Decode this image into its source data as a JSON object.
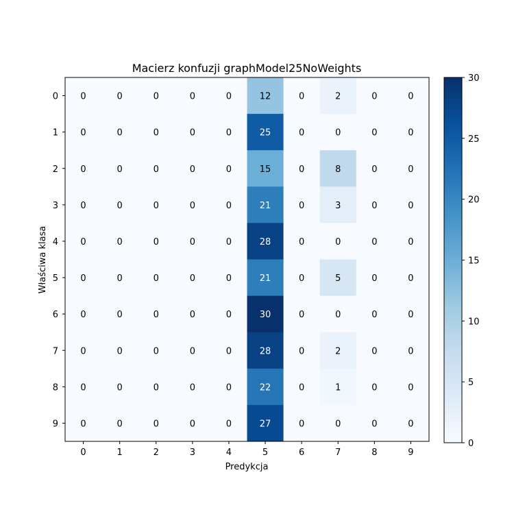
{
  "chart_data": {
    "type": "heatmap",
    "title": "Macierz konfuzji graphModel25NoWeights",
    "xlabel": "Predykcja",
    "ylabel": "Właściwa klasa",
    "x_categories": [
      "0",
      "1",
      "2",
      "3",
      "4",
      "5",
      "6",
      "7",
      "8",
      "9"
    ],
    "y_categories": [
      "0",
      "1",
      "2",
      "3",
      "4",
      "5",
      "6",
      "7",
      "8",
      "9"
    ],
    "values": [
      [
        0,
        0,
        0,
        0,
        0,
        12,
        0,
        2,
        0,
        0
      ],
      [
        0,
        0,
        0,
        0,
        0,
        25,
        0,
        0,
        0,
        0
      ],
      [
        0,
        0,
        0,
        0,
        0,
        15,
        0,
        8,
        0,
        0
      ],
      [
        0,
        0,
        0,
        0,
        0,
        21,
        0,
        3,
        0,
        0
      ],
      [
        0,
        0,
        0,
        0,
        0,
        28,
        0,
        0,
        0,
        0
      ],
      [
        0,
        0,
        0,
        0,
        0,
        21,
        0,
        5,
        0,
        0
      ],
      [
        0,
        0,
        0,
        0,
        0,
        30,
        0,
        0,
        0,
        0
      ],
      [
        0,
        0,
        0,
        0,
        0,
        28,
        0,
        2,
        0,
        0
      ],
      [
        0,
        0,
        0,
        0,
        0,
        22,
        0,
        1,
        0,
        0
      ],
      [
        0,
        0,
        0,
        0,
        0,
        27,
        0,
        0,
        0,
        0
      ]
    ],
    "colorbar": {
      "min": 0,
      "max": 30,
      "ticks": [
        "0",
        "5",
        "10",
        "15",
        "20",
        "25",
        "30"
      ]
    },
    "colormap": "Blues",
    "grid": false
  }
}
